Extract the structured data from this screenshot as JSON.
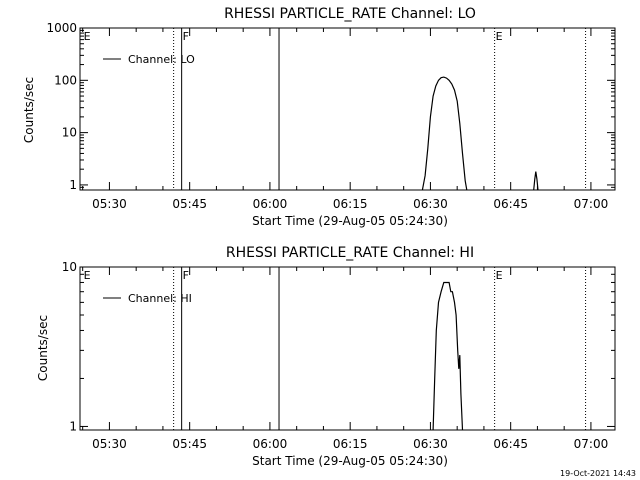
{
  "footer_timestamp": "19-Oct-2021 14:43",
  "chart_data": [
    {
      "type": "line",
      "title": "RHESSI PARTICLE_RATE Channel: LO",
      "xlabel": "Start Time (29-Aug-05 05:24:30)",
      "ylabel": "Counts/sec",
      "yscale": "log",
      "ylim": [
        0.8,
        1000
      ],
      "xlim_minutes": [
        0,
        100
      ],
      "x_tick_labels": [
        "05:30",
        "05:45",
        "06:00",
        "06:15",
        "06:30",
        "06:45",
        "07:00"
      ],
      "x_tick_minutes": [
        5.5,
        20.5,
        35.5,
        50.5,
        65.5,
        80.5,
        95.5
      ],
      "y_tick_labels": [
        "1",
        "10",
        "100",
        "1000"
      ],
      "y_tick_values": [
        1,
        10,
        100,
        1000
      ],
      "legend": {
        "entries": [
          "Channel: LO"
        ],
        "position": "top-left"
      },
      "markers": [
        {
          "label": "E",
          "minute": 0.5,
          "style": "none"
        },
        {
          "label": "",
          "minute": 17.5,
          "style": "dotted"
        },
        {
          "label": "F",
          "minute": 19.0,
          "style": "solid"
        },
        {
          "label": "",
          "minute": 37.2,
          "style": "solid"
        },
        {
          "label": "E",
          "minute": 77.5,
          "style": "dotted"
        },
        {
          "label": "",
          "minute": 94.5,
          "style": "dotted"
        }
      ],
      "series": [
        {
          "name": "Channel: LO",
          "points": [
            [
              64.0,
              0.8
            ],
            [
              64.5,
              1.5
            ],
            [
              65.0,
              5
            ],
            [
              65.5,
              20
            ],
            [
              66.0,
              50
            ],
            [
              66.5,
              78
            ],
            [
              67.0,
              100
            ],
            [
              67.5,
              112
            ],
            [
              68.0,
              115
            ],
            [
              68.5,
              110
            ],
            [
              69.0,
              100
            ],
            [
              69.5,
              85
            ],
            [
              70.0,
              65
            ],
            [
              70.5,
              40
            ],
            [
              71.0,
              15
            ],
            [
              71.5,
              4
            ],
            [
              72.0,
              1.2
            ],
            [
              72.3,
              0.8
            ]
          ]
        },
        {
          "name": "",
          "points": [
            [
              84.8,
              0.8
            ],
            [
              85.0,
              1.3
            ],
            [
              85.2,
              1.8
            ],
            [
              85.4,
              1.3
            ],
            [
              85.6,
              0.8
            ]
          ]
        }
      ]
    },
    {
      "type": "line",
      "title": "RHESSI PARTICLE_RATE Channel: HI",
      "xlabel": "Start Time (29-Aug-05 05:24:30)",
      "ylabel": "Counts/sec",
      "yscale": "log",
      "ylim": [
        0.95,
        10
      ],
      "xlim_minutes": [
        0,
        100
      ],
      "x_tick_labels": [
        "05:30",
        "05:45",
        "06:00",
        "06:15",
        "06:30",
        "06:45",
        "07:00"
      ],
      "x_tick_minutes": [
        5.5,
        20.5,
        35.5,
        50.5,
        65.5,
        80.5,
        95.5
      ],
      "y_tick_labels": [
        "1",
        "10"
      ],
      "y_tick_values": [
        1,
        10
      ],
      "legend": {
        "entries": [
          "Channel: HI"
        ],
        "position": "top-left"
      },
      "markers": [
        {
          "label": "E",
          "minute": 0.5,
          "style": "none"
        },
        {
          "label": "",
          "minute": 17.5,
          "style": "dotted"
        },
        {
          "label": "F",
          "minute": 19.0,
          "style": "solid"
        },
        {
          "label": "",
          "minute": 37.2,
          "style": "solid"
        },
        {
          "label": "E",
          "minute": 77.5,
          "style": "dotted"
        },
        {
          "label": "",
          "minute": 94.5,
          "style": "dotted"
        }
      ],
      "series": [
        {
          "name": "Channel: HI",
          "points": [
            [
              66.0,
              0.95
            ],
            [
              66.3,
              2.0
            ],
            [
              66.6,
              4.0
            ],
            [
              67.0,
              6.0
            ],
            [
              67.5,
              7.0
            ],
            [
              68.0,
              8.0
            ],
            [
              68.5,
              8.0
            ],
            [
              69.0,
              8.0
            ],
            [
              69.3,
              7.0
            ],
            [
              69.6,
              7.0
            ],
            [
              70.0,
              6.0
            ],
            [
              70.3,
              5.0
            ],
            [
              70.6,
              3.0
            ],
            [
              70.8,
              2.3
            ],
            [
              71.0,
              2.8
            ],
            [
              71.2,
              1.6
            ],
            [
              71.5,
              0.95
            ]
          ]
        }
      ]
    }
  ]
}
